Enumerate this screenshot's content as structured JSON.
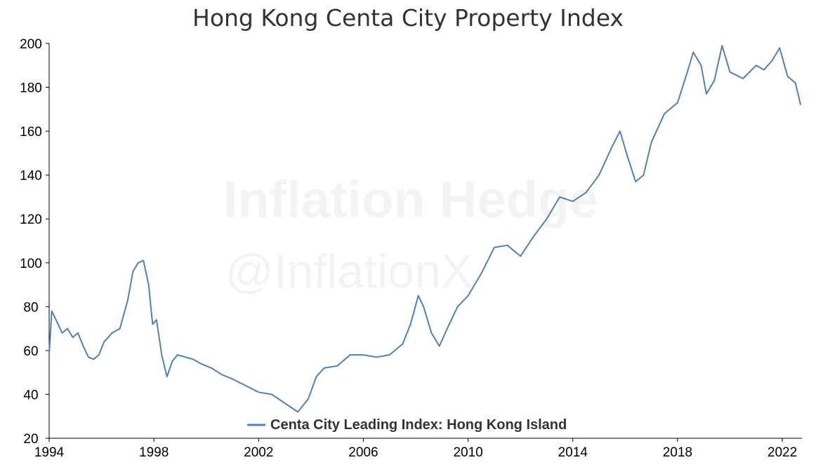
{
  "chart_data": {
    "type": "line",
    "title": "Hong Kong Centa City Property Index",
    "xlabel": "",
    "ylabel": "",
    "xlim": [
      1994,
      2022.75
    ],
    "ylim": [
      20,
      200
    ],
    "x_ticks": [
      "1994",
      "1998",
      "2002",
      "2006",
      "2010",
      "2014",
      "2018",
      "2022"
    ],
    "y_ticks": [
      "20",
      "40",
      "60",
      "80",
      "100",
      "120",
      "140",
      "160",
      "180",
      "200"
    ],
    "grid": false,
    "legend_position": "bottom-center",
    "watermark": [
      "Inflation Hedge",
      "@InflationX"
    ],
    "series": [
      {
        "name": "Centa City Leading Index: Hong Kong Island",
        "color": "#4f7fbf",
        "x": [
          1994.0,
          1994.1,
          1994.3,
          1994.5,
          1994.7,
          1994.9,
          1995.1,
          1995.3,
          1995.5,
          1995.7,
          1995.9,
          1996.1,
          1996.4,
          1996.7,
          1997.0,
          1997.2,
          1997.4,
          1997.6,
          1997.8,
          1997.95,
          1998.1,
          1998.3,
          1998.5,
          1998.7,
          1998.9,
          1999.2,
          1999.5,
          1999.8,
          2000.2,
          2000.6,
          2001.0,
          2001.5,
          2002.0,
          2002.5,
          2003.0,
          2003.5,
          2003.9,
          2004.2,
          2004.5,
          2005.0,
          2005.5,
          2006.0,
          2006.5,
          2007.0,
          2007.5,
          2007.8,
          2008.1,
          2008.3,
          2008.6,
          2008.9,
          2009.2,
          2009.6,
          2010.0,
          2010.5,
          2011.0,
          2011.5,
          2012.0,
          2012.5,
          2013.0,
          2013.5,
          2014.0,
          2014.5,
          2015.0,
          2015.5,
          2015.8,
          2016.1,
          2016.4,
          2016.7,
          2017.0,
          2017.5,
          2018.0,
          2018.4,
          2018.6,
          2018.9,
          2019.1,
          2019.4,
          2019.7,
          2020.0,
          2020.5,
          2021.0,
          2021.3,
          2021.6,
          2021.9,
          2022.2,
          2022.5,
          2022.7
        ],
        "values": [
          58,
          78,
          73,
          68,
          70,
          66,
          68,
          62,
          57,
          56,
          58,
          64,
          68,
          70,
          83,
          96,
          100,
          101,
          90,
          72,
          74,
          58,
          48,
          55,
          58,
          57,
          56,
          54,
          52,
          49,
          47,
          44,
          41,
          40,
          36,
          32,
          38,
          48,
          52,
          53,
          58,
          58,
          57,
          58,
          63,
          72,
          85,
          80,
          68,
          62,
          70,
          80,
          85,
          95,
          107,
          108,
          103,
          112,
          120,
          130,
          128,
          132,
          140,
          153,
          160,
          148,
          137,
          140,
          155,
          168,
          173,
          188,
          196,
          190,
          177,
          183,
          199,
          187,
          184,
          190,
          188,
          192,
          198,
          185,
          182,
          172
        ]
      }
    ]
  }
}
